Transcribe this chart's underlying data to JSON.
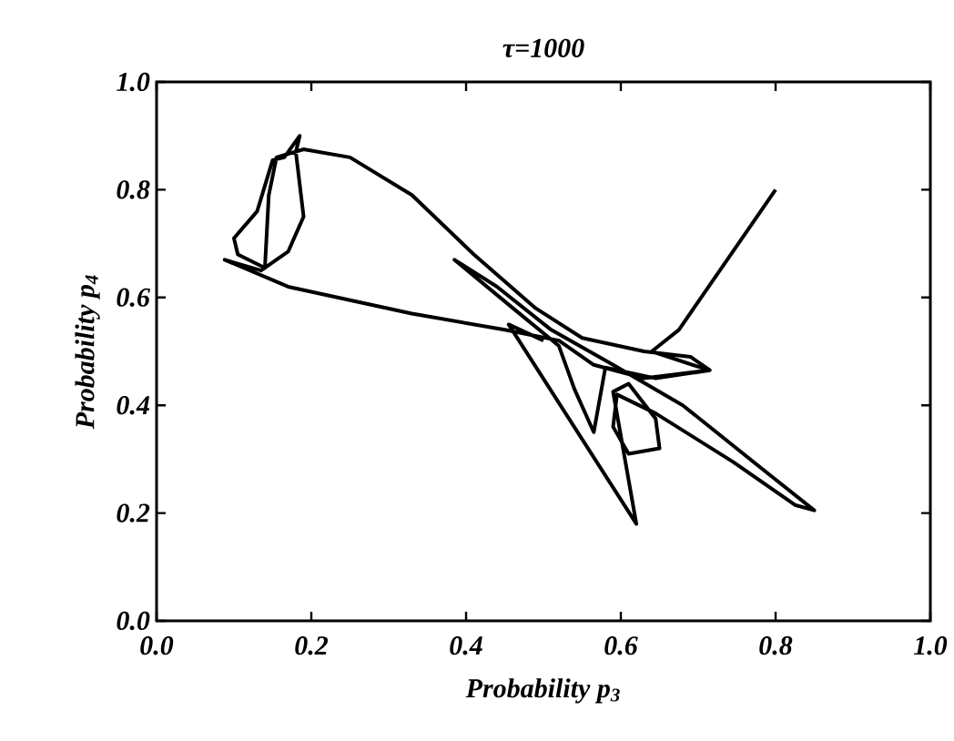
{
  "chart_data": {
    "type": "line",
    "title": "τ=1000",
    "xlabel": "Probability p$_{3}$",
    "ylabel": "Probability p$_{4}$",
    "xlim": [
      0,
      1
    ],
    "ylim": [
      0,
      1
    ],
    "xticks": [
      {
        "value": 0,
        "label": "0.0"
      },
      {
        "value": 0.2,
        "label": "0.2"
      },
      {
        "value": 0.4,
        "label": "0.4"
      },
      {
        "value": 0.6,
        "label": "0.6"
      },
      {
        "value": 0.8,
        "label": "0.8"
      },
      {
        "value": 1,
        "label": "1.0"
      }
    ],
    "yticks": [
      {
        "value": 0,
        "label": "0.0"
      },
      {
        "value": 0.2,
        "label": "0.2"
      },
      {
        "value": 0.4,
        "label": "0.4"
      },
      {
        "value": 0.6,
        "label": "0.6"
      },
      {
        "value": 0.8,
        "label": "0.8"
      },
      {
        "value": 1,
        "label": "1.0"
      }
    ],
    "marker": "none",
    "line_style": "solid",
    "series": [
      {
        "color": "#000000",
        "x": [
          0.8,
          0.675,
          0.64,
          0.714,
          0.63,
          0.565,
          0.52,
          0.45,
          0.33,
          0.17,
          0.088,
          0.135,
          0.17,
          0.19,
          0.18,
          0.185,
          0.165,
          0.15,
          0.13,
          0.1,
          0.105,
          0.14,
          0.145,
          0.155,
          0.19,
          0.25,
          0.33,
          0.41,
          0.49,
          0.55,
          0.63,
          0.69,
          0.715,
          0.645,
          0.58,
          0.565,
          0.54,
          0.52,
          0.465,
          0.385,
          0.44,
          0.51,
          0.59,
          0.68,
          0.78,
          0.85,
          0.825,
          0.745,
          0.645,
          0.595,
          0.59,
          0.61,
          0.65,
          0.645,
          0.61,
          0.59,
          0.62,
          0.455,
          0.5
        ],
        "values": [
          0.8,
          0.54,
          0.5,
          0.465,
          0.45,
          0.475,
          0.52,
          0.54,
          0.57,
          0.62,
          0.67,
          0.65,
          0.685,
          0.75,
          0.87,
          0.9,
          0.86,
          0.855,
          0.76,
          0.71,
          0.68,
          0.655,
          0.79,
          0.86,
          0.875,
          0.86,
          0.79,
          0.68,
          0.58,
          0.525,
          0.5,
          0.49,
          0.465,
          0.45,
          0.47,
          0.35,
          0.43,
          0.51,
          0.575,
          0.67,
          0.62,
          0.54,
          0.475,
          0.4,
          0.285,
          0.205,
          0.215,
          0.295,
          0.385,
          0.42,
          0.36,
          0.31,
          0.32,
          0.375,
          0.44,
          0.425,
          0.18,
          0.55,
          0.52
        ]
      }
    ]
  }
}
